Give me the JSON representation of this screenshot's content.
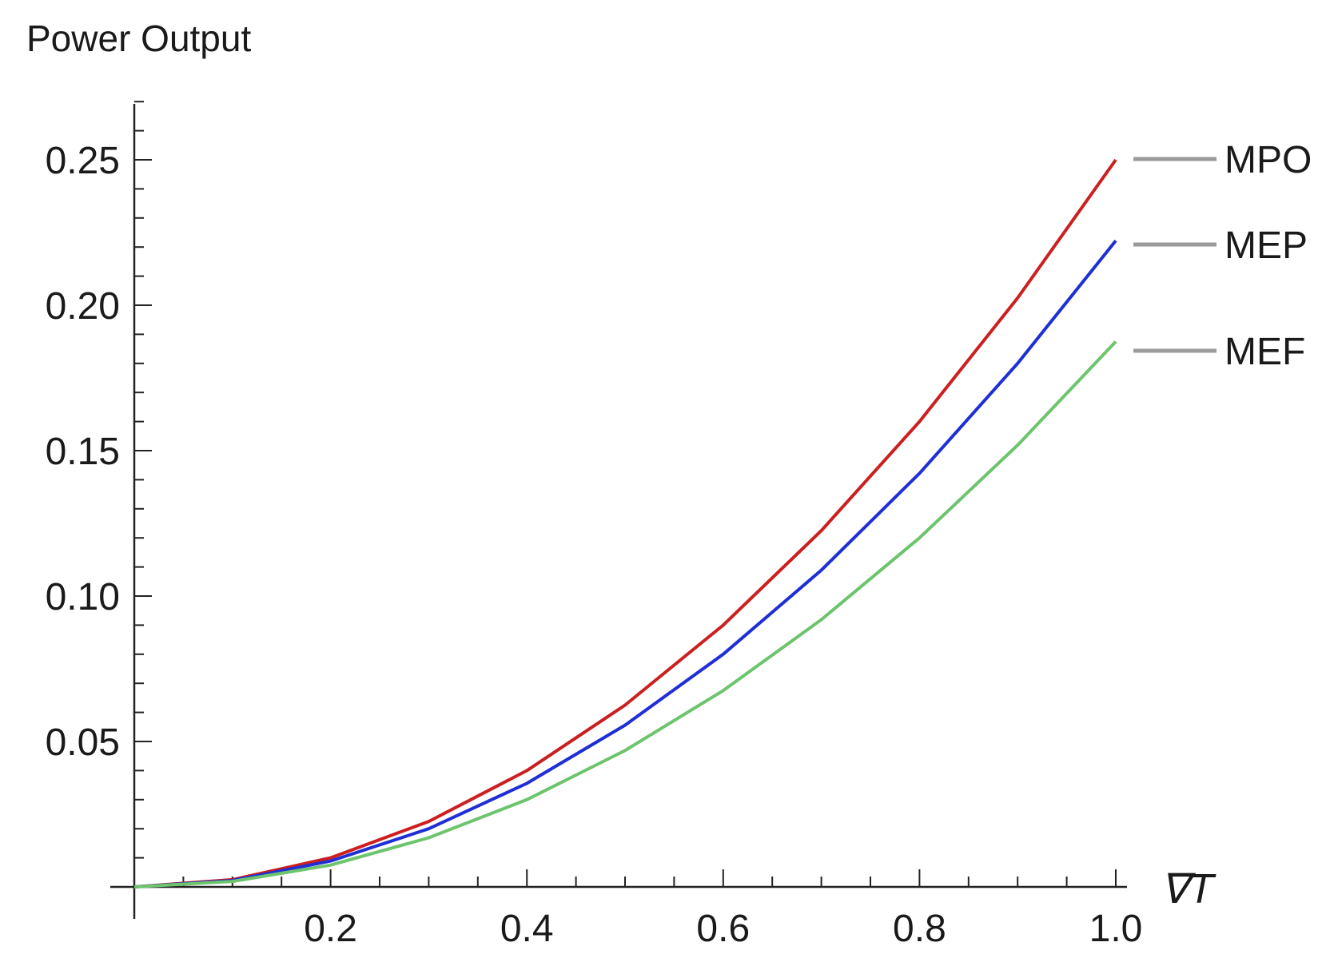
{
  "chart_data": {
    "type": "line",
    "ylabel": "Power Output",
    "xlabel": "∇T",
    "xlim": [
      0,
      1.0
    ],
    "ylim": [
      0,
      0.27
    ],
    "x_ticks": [
      "0.2",
      "0.4",
      "0.6",
      "0.8",
      "1.0"
    ],
    "x_tick_values": [
      0.2,
      0.4,
      0.6,
      0.8,
      1.0
    ],
    "y_ticks": [
      "0.05",
      "0.10",
      "0.15",
      "0.20",
      "0.25"
    ],
    "y_tick_values": [
      0.05,
      0.1,
      0.15,
      0.2,
      0.25
    ],
    "grid": false,
    "legend_placement": "right",
    "series": [
      {
        "name": "MPO",
        "color": "#cc1f1f",
        "x": [
          0,
          0.1,
          0.2,
          0.3,
          0.4,
          0.5,
          0.6,
          0.7,
          0.8,
          0.9,
          1.0
        ],
        "y": [
          0,
          0.0025,
          0.01,
          0.0225,
          0.04,
          0.0625,
          0.09,
          0.1225,
          0.16,
          0.2025,
          0.25
        ]
      },
      {
        "name": "MEP",
        "color": "#1f2fd6",
        "x": [
          0,
          0.1,
          0.2,
          0.3,
          0.4,
          0.5,
          0.6,
          0.7,
          0.8,
          0.9,
          1.0
        ],
        "y": [
          0,
          0.0022,
          0.0089,
          0.02,
          0.0356,
          0.0556,
          0.08,
          0.1089,
          0.1422,
          0.18,
          0.2222
        ]
      },
      {
        "name": "MEF",
        "color": "#6cc46c",
        "x": [
          0,
          0.1,
          0.2,
          0.3,
          0.4,
          0.5,
          0.6,
          0.7,
          0.8,
          0.9,
          1.0
        ],
        "y": [
          0,
          0.0019,
          0.0075,
          0.0169,
          0.03,
          0.0469,
          0.0675,
          0.0919,
          0.12,
          0.1519,
          0.1875
        ]
      }
    ]
  }
}
